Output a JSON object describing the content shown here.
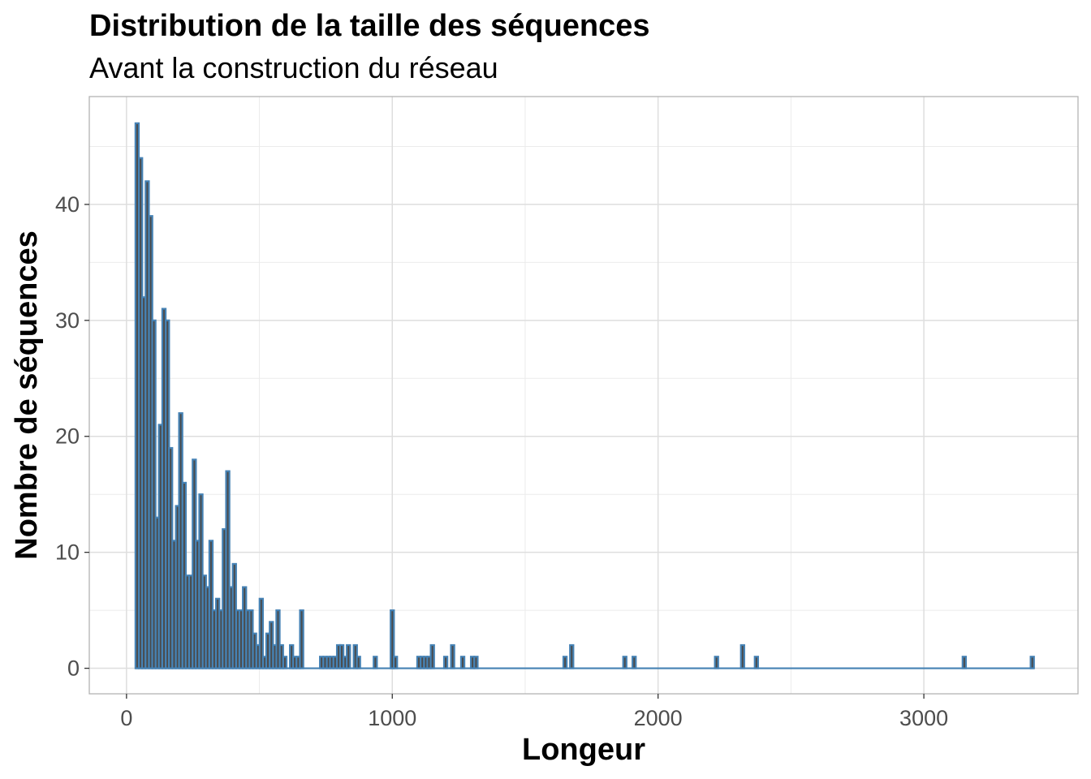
{
  "chart_data": {
    "type": "bar",
    "title": "Distribution de la taille des séquences",
    "subtitle": "Avant la construction du réseau",
    "xlabel": "Longeur",
    "ylabel": "Nombre de séquences",
    "xlim": [
      -140,
      3580
    ],
    "ylim": [
      -2.2,
      49.3
    ],
    "xticks": [
      {
        "value": 0,
        "label": "0"
      },
      {
        "value": 1000,
        "label": "1000"
      },
      {
        "value": 2000,
        "label": "2000"
      },
      {
        "value": 3000,
        "label": "3000"
      }
    ],
    "yticks": [
      {
        "value": 0,
        "label": "0"
      },
      {
        "value": 10,
        "label": "10"
      },
      {
        "value": 20,
        "label": "20"
      },
      {
        "value": 30,
        "label": "30"
      },
      {
        "value": 40,
        "label": "40"
      }
    ],
    "grid": true,
    "bin_width": 12.6,
    "bar_fill": "#4a4a4a",
    "bar_outline": "#4682b4",
    "bins": [
      {
        "x": 40,
        "y": 47
      },
      {
        "x": 53,
        "y": 44
      },
      {
        "x": 65,
        "y": 32
      },
      {
        "x": 78,
        "y": 42
      },
      {
        "x": 91,
        "y": 39
      },
      {
        "x": 103,
        "y": 30
      },
      {
        "x": 116,
        "y": 13
      },
      {
        "x": 128,
        "y": 21
      },
      {
        "x": 141,
        "y": 31
      },
      {
        "x": 154,
        "y": 30
      },
      {
        "x": 166,
        "y": 19
      },
      {
        "x": 179,
        "y": 11
      },
      {
        "x": 192,
        "y": 14
      },
      {
        "x": 204,
        "y": 22
      },
      {
        "x": 217,
        "y": 16
      },
      {
        "x": 229,
        "y": 8
      },
      {
        "x": 242,
        "y": 8
      },
      {
        "x": 255,
        "y": 18
      },
      {
        "x": 267,
        "y": 11
      },
      {
        "x": 280,
        "y": 15
      },
      {
        "x": 293,
        "y": 8
      },
      {
        "x": 305,
        "y": 7
      },
      {
        "x": 318,
        "y": 11
      },
      {
        "x": 330,
        "y": 5
      },
      {
        "x": 343,
        "y": 6
      },
      {
        "x": 356,
        "y": 5
      },
      {
        "x": 368,
        "y": 12
      },
      {
        "x": 381,
        "y": 17
      },
      {
        "x": 394,
        "y": 7
      },
      {
        "x": 406,
        "y": 9
      },
      {
        "x": 419,
        "y": 5
      },
      {
        "x": 431,
        "y": 5
      },
      {
        "x": 444,
        "y": 7
      },
      {
        "x": 457,
        "y": 5
      },
      {
        "x": 469,
        "y": 5
      },
      {
        "x": 482,
        "y": 3
      },
      {
        "x": 495,
        "y": 2
      },
      {
        "x": 507,
        "y": 6
      },
      {
        "x": 520,
        "y": 1
      },
      {
        "x": 532,
        "y": 3
      },
      {
        "x": 545,
        "y": 4
      },
      {
        "x": 558,
        "y": 2
      },
      {
        "x": 570,
        "y": 5
      },
      {
        "x": 583,
        "y": 2
      },
      {
        "x": 596,
        "y": 1
      },
      {
        "x": 608,
        "y": 0
      },
      {
        "x": 621,
        "y": 2
      },
      {
        "x": 633,
        "y": 1
      },
      {
        "x": 646,
        "y": 1
      },
      {
        "x": 659,
        "y": 5
      },
      {
        "x": 671,
        "y": 0
      },
      {
        "x": 684,
        "y": 0
      },
      {
        "x": 697,
        "y": 0
      },
      {
        "x": 709,
        "y": 0
      },
      {
        "x": 722,
        "y": 0
      },
      {
        "x": 734,
        "y": 1
      },
      {
        "x": 747,
        "y": 1
      },
      {
        "x": 760,
        "y": 1
      },
      {
        "x": 772,
        "y": 1
      },
      {
        "x": 785,
        "y": 1
      },
      {
        "x": 798,
        "y": 2
      },
      {
        "x": 810,
        "y": 2
      },
      {
        "x": 823,
        "y": 1
      },
      {
        "x": 835,
        "y": 2
      },
      {
        "x": 848,
        "y": 0
      },
      {
        "x": 861,
        "y": 2
      },
      {
        "x": 873,
        "y": 1
      },
      {
        "x": 886,
        "y": 0
      },
      {
        "x": 899,
        "y": 0
      },
      {
        "x": 911,
        "y": 0
      },
      {
        "x": 924,
        "y": 0
      },
      {
        "x": 936,
        "y": 1
      },
      {
        "x": 949,
        "y": 0
      },
      {
        "x": 962,
        "y": 0
      },
      {
        "x": 974,
        "y": 0
      },
      {
        "x": 987,
        "y": 0
      },
      {
        "x": 1000,
        "y": 5
      },
      {
        "x": 1012,
        "y": 1
      },
      {
        "x": 1025,
        "y": 0
      },
      {
        "x": 1037,
        "y": 0
      },
      {
        "x": 1050,
        "y": 0
      },
      {
        "x": 1063,
        "y": 0
      },
      {
        "x": 1075,
        "y": 0
      },
      {
        "x": 1088,
        "y": 0
      },
      {
        "x": 1100,
        "y": 1
      },
      {
        "x": 1113,
        "y": 1
      },
      {
        "x": 1126,
        "y": 1
      },
      {
        "x": 1138,
        "y": 1
      },
      {
        "x": 1151,
        "y": 2
      },
      {
        "x": 1164,
        "y": 0
      },
      {
        "x": 1176,
        "y": 0
      },
      {
        "x": 1189,
        "y": 0
      },
      {
        "x": 1201,
        "y": 1
      },
      {
        "x": 1214,
        "y": 0
      },
      {
        "x": 1227,
        "y": 2
      },
      {
        "x": 1239,
        "y": 0
      },
      {
        "x": 1252,
        "y": 0
      },
      {
        "x": 1265,
        "y": 1
      },
      {
        "x": 1277,
        "y": 0
      },
      {
        "x": 1290,
        "y": 0
      },
      {
        "x": 1302,
        "y": 1
      },
      {
        "x": 1315,
        "y": 1
      },
      {
        "x": 1650,
        "y": 1
      },
      {
        "x": 1675,
        "y": 2
      },
      {
        "x": 1875,
        "y": 1
      },
      {
        "x": 1910,
        "y": 1
      },
      {
        "x": 2220,
        "y": 1
      },
      {
        "x": 2318,
        "y": 2
      },
      {
        "x": 2370,
        "y": 1
      },
      {
        "x": 3152,
        "y": 1
      },
      {
        "x": 3408,
        "y": 1
      }
    ]
  }
}
